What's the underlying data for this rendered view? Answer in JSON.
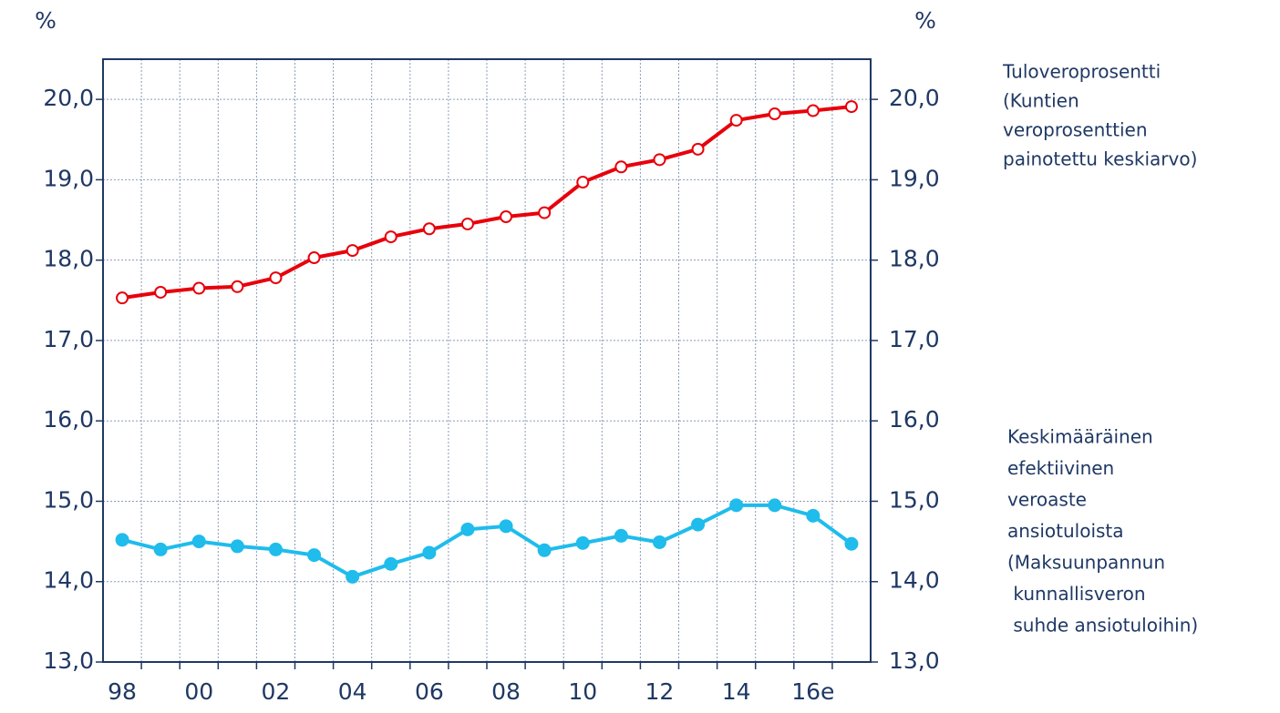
{
  "chart_data": {
    "type": "line",
    "ylabel": "%",
    "y2label": "%",
    "categories": [
      "98",
      null,
      "00",
      null,
      "02",
      null,
      "04",
      null,
      "06",
      null,
      "08",
      null,
      "10",
      null,
      "12",
      null,
      "14",
      null,
      "16e",
      null
    ],
    "series": [
      {
        "label_lines": [
          "Tuloveroprosentti",
          "(Kuntien",
          "veroprosenttien",
          "painotettu keskiarvo)"
        ],
        "color": "#e8000b",
        "marker": "open",
        "values": [
          17.53,
          17.6,
          17.65,
          17.67,
          17.78,
          18.03,
          18.12,
          18.29,
          18.39,
          18.45,
          18.54,
          18.59,
          18.97,
          19.16,
          19.25,
          19.38,
          19.74,
          19.82,
          19.86,
          19.91
        ]
      },
      {
        "label_lines": [
          "Keskimääräinen",
          "efektiivinen",
          "veroaste",
          "ansiotuloista",
          "(Maksuunpannun",
          " kunnallisveron",
          " suhde ansiotuloihin)"
        ],
        "color": "#1fbcec",
        "marker": "filled",
        "values": [
          14.52,
          14.4,
          14.5,
          14.44,
          14.4,
          14.33,
          14.06,
          14.22,
          14.36,
          14.65,
          14.69,
          14.39,
          14.48,
          14.57,
          14.49,
          14.71,
          14.95,
          14.95,
          14.82,
          14.47
        ]
      }
    ],
    "ylim": [
      13,
      20.5
    ],
    "yticks": [
      {
        "value": 13,
        "label": "13,0"
      },
      {
        "value": 14,
        "label": "14,0"
      },
      {
        "value": 15,
        "label": "15,0"
      },
      {
        "value": 16,
        "label": "16,0"
      },
      {
        "value": 17,
        "label": "17,0"
      },
      {
        "value": 18,
        "label": "18,0"
      },
      {
        "value": 19,
        "label": "19,0"
      },
      {
        "value": 20,
        "label": "20,0"
      }
    ],
    "y2lim": [
      13,
      20.5
    ],
    "y2ticks": [
      {
        "value": 13,
        "label": "13,0"
      },
      {
        "value": 14,
        "label": "14,0"
      },
      {
        "value": 15,
        "label": "15,0"
      },
      {
        "value": 16,
        "label": "16,0"
      },
      {
        "value": 17,
        "label": "17,0"
      },
      {
        "value": 18,
        "label": "18,0"
      },
      {
        "value": 19,
        "label": "19,0"
      },
      {
        "value": 20,
        "label": "20,0"
      }
    ],
    "grid": true
  }
}
